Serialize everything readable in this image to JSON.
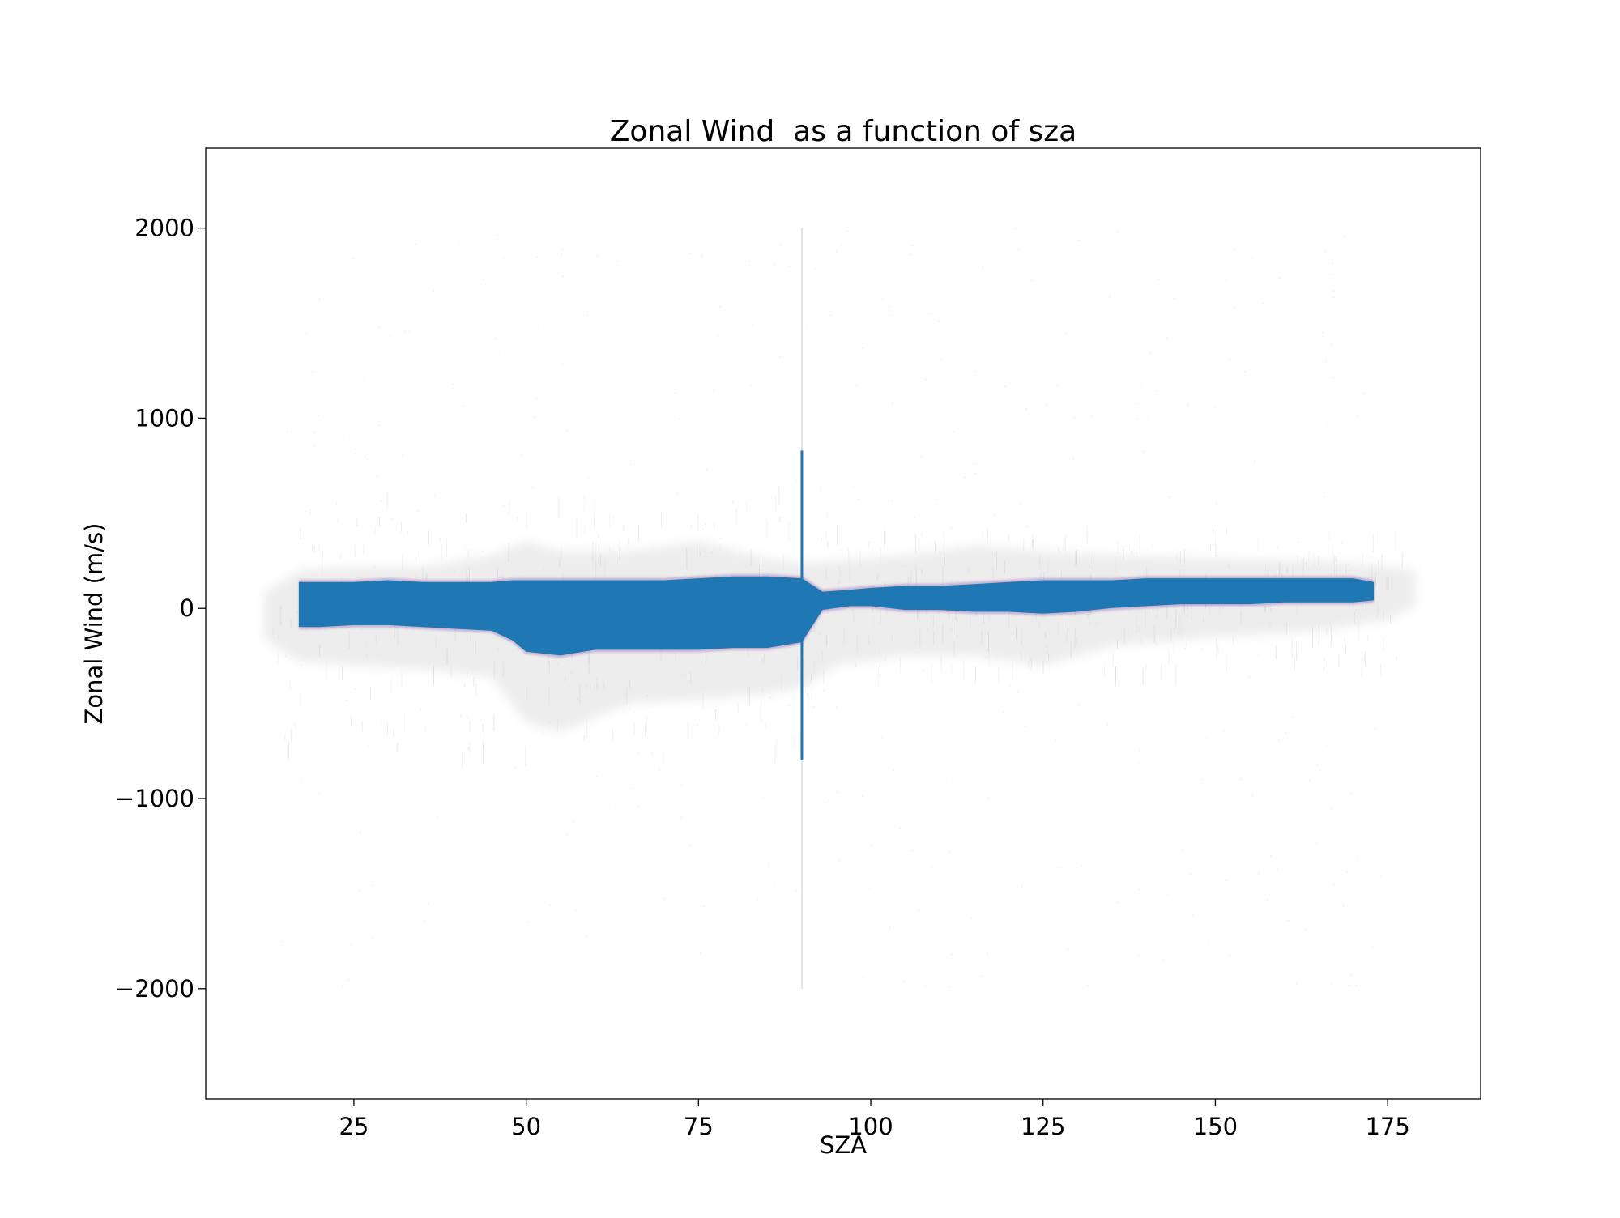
{
  "chart_data": {
    "type": "scatter",
    "title": "Zonal Wind  as a function of sza",
    "xlabel": "SZA",
    "ylabel": "Zonal Wind (m/s)",
    "xlim": [
      3.5,
      188.5
    ],
    "ylim": [
      -2580,
      2420
    ],
    "grid": false,
    "legend": "none",
    "colors": {
      "series": "#1f77b4",
      "halo": "#9a9a9a",
      "purple_fringe": "#7b4aa8",
      "axes": "#000000",
      "background": "#ffffff"
    },
    "x_ticks": [
      {
        "value": 25,
        "label": "25"
      },
      {
        "value": 50,
        "label": "50"
      },
      {
        "value": 75,
        "label": "75"
      },
      {
        "value": 100,
        "label": "100"
      },
      {
        "value": 125,
        "label": "125"
      },
      {
        "value": 150,
        "label": "150"
      },
      {
        "value": 175,
        "label": "175"
      }
    ],
    "y_ticks": [
      {
        "value": 2000,
        "label": "2000"
      },
      {
        "value": 1000,
        "label": "1000"
      },
      {
        "value": 0,
        "label": "0"
      },
      {
        "value": -1000,
        "label": "−1000"
      },
      {
        "value": -2000,
        "label": "−2000"
      }
    ],
    "density_core": [
      {
        "x": 17,
        "lo": -110,
        "hi": 150
      },
      {
        "x": 20,
        "lo": -110,
        "hi": 150
      },
      {
        "x": 25,
        "lo": -100,
        "hi": 150
      },
      {
        "x": 30,
        "lo": -100,
        "hi": 160
      },
      {
        "x": 35,
        "lo": -110,
        "hi": 150
      },
      {
        "x": 40,
        "lo": -120,
        "hi": 150
      },
      {
        "x": 45,
        "lo": -130,
        "hi": 150
      },
      {
        "x": 48,
        "lo": -180,
        "hi": 160
      },
      {
        "x": 50,
        "lo": -240,
        "hi": 160
      },
      {
        "x": 55,
        "lo": -260,
        "hi": 160
      },
      {
        "x": 60,
        "lo": -230,
        "hi": 160
      },
      {
        "x": 65,
        "lo": -230,
        "hi": 160
      },
      {
        "x": 70,
        "lo": -230,
        "hi": 160
      },
      {
        "x": 75,
        "lo": -230,
        "hi": 170
      },
      {
        "x": 80,
        "lo": -220,
        "hi": 180
      },
      {
        "x": 85,
        "lo": -220,
        "hi": 180
      },
      {
        "x": 90,
        "lo": -190,
        "hi": 170
      },
      {
        "x": 93,
        "lo": -20,
        "hi": 100
      },
      {
        "x": 97,
        "lo": 0,
        "hi": 110
      },
      {
        "x": 100,
        "lo": 0,
        "hi": 120
      },
      {
        "x": 105,
        "lo": -20,
        "hi": 130
      },
      {
        "x": 110,
        "lo": -20,
        "hi": 130
      },
      {
        "x": 115,
        "lo": -30,
        "hi": 140
      },
      {
        "x": 120,
        "lo": -30,
        "hi": 150
      },
      {
        "x": 125,
        "lo": -40,
        "hi": 160
      },
      {
        "x": 130,
        "lo": -30,
        "hi": 160
      },
      {
        "x": 135,
        "lo": -10,
        "hi": 160
      },
      {
        "x": 140,
        "lo": 0,
        "hi": 170
      },
      {
        "x": 145,
        "lo": 10,
        "hi": 170
      },
      {
        "x": 150,
        "lo": 10,
        "hi": 170
      },
      {
        "x": 155,
        "lo": 10,
        "hi": 170
      },
      {
        "x": 160,
        "lo": 20,
        "hi": 170
      },
      {
        "x": 165,
        "lo": 20,
        "hi": 170
      },
      {
        "x": 170,
        "lo": 20,
        "hi": 170
      },
      {
        "x": 173,
        "lo": 30,
        "hi": 150
      }
    ],
    "halo": [
      {
        "x": 12,
        "lo": -160,
        "hi": 80
      },
      {
        "x": 17,
        "lo": -280,
        "hi": 200
      },
      {
        "x": 25,
        "lo": -300,
        "hi": 220
      },
      {
        "x": 35,
        "lo": -320,
        "hi": 220
      },
      {
        "x": 45,
        "lo": -360,
        "hi": 280
      },
      {
        "x": 50,
        "lo": -600,
        "hi": 350
      },
      {
        "x": 55,
        "lo": -650,
        "hi": 300
      },
      {
        "x": 65,
        "lo": -500,
        "hi": 300
      },
      {
        "x": 75,
        "lo": -480,
        "hi": 350
      },
      {
        "x": 85,
        "lo": -450,
        "hi": 260
      },
      {
        "x": 90,
        "lo": -420,
        "hi": 240
      },
      {
        "x": 95,
        "lo": -300,
        "hi": 250
      },
      {
        "x": 105,
        "lo": -250,
        "hi": 280
      },
      {
        "x": 115,
        "lo": -250,
        "hi": 330
      },
      {
        "x": 125,
        "lo": -300,
        "hi": 300
      },
      {
        "x": 135,
        "lo": -200,
        "hi": 280
      },
      {
        "x": 150,
        "lo": -150,
        "hi": 260
      },
      {
        "x": 165,
        "lo": -120,
        "hi": 250
      },
      {
        "x": 175,
        "lo": -60,
        "hi": 220
      },
      {
        "x": 179,
        "lo": 10,
        "hi": 200
      }
    ],
    "vertical_line": {
      "x": 90,
      "ymin": -2000,
      "ymax": 2000,
      "dense_min": -800,
      "dense_max": 830
    }
  }
}
